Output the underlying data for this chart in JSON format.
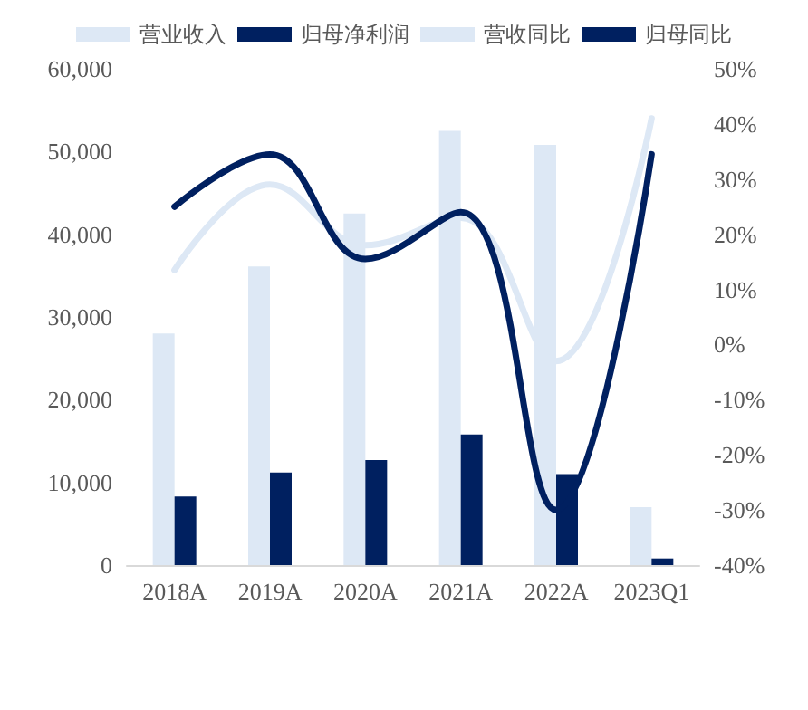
{
  "chart_data": {
    "type": "bar",
    "categories": [
      "2018A",
      "2019A",
      "2020A",
      "2021A",
      "2022A",
      "2023Q1"
    ],
    "series": [
      {
        "name": "营业收入",
        "color": "#dde8f5",
        "values": [
          28000,
          36100,
          42500,
          52500,
          50800,
          7000
        ]
      },
      {
        "name": "归母净利润",
        "color": "#002060",
        "values": [
          8300,
          11200,
          12700,
          15800,
          11000,
          800
        ]
      },
      {
        "name": "营收同比",
        "type": "line",
        "axis": "y2",
        "color": "#dde8f5",
        "values": [
          13.5,
          29,
          18,
          23,
          -3,
          41
        ]
      },
      {
        "name": "归母同比",
        "type": "line",
        "axis": "y2",
        "color": "#002060",
        "values": [
          25,
          34.5,
          15.5,
          24,
          -30,
          34.5
        ]
      }
    ],
    "ylim": [
      0,
      60000
    ],
    "yticks": [
      {
        "value": 0,
        "label": "0"
      },
      {
        "value": 10000,
        "label": "10,000"
      },
      {
        "value": 20000,
        "label": "20,000"
      },
      {
        "value": 30000,
        "label": "30,000"
      },
      {
        "value": 40000,
        "label": "40,000"
      },
      {
        "value": 50000,
        "label": "50,000"
      },
      {
        "value": 60000,
        "label": "60,000"
      }
    ],
    "y2lim": [
      -40,
      50
    ],
    "y2ticks": [
      {
        "value": -40,
        "label": "-40%"
      },
      {
        "value": -30,
        "label": "-30%"
      },
      {
        "value": -20,
        "label": "-20%"
      },
      {
        "value": -10,
        "label": "-10%"
      },
      {
        "value": 0,
        "label": "0%"
      },
      {
        "value": 10,
        "label": "10%"
      },
      {
        "value": 20,
        "label": "20%"
      },
      {
        "value": 30,
        "label": "30%"
      },
      {
        "value": 40,
        "label": "40%"
      },
      {
        "value": 50,
        "label": "50%"
      }
    ],
    "legend": "top",
    "grid": false,
    "marker": "none",
    "line_style": "solid"
  }
}
